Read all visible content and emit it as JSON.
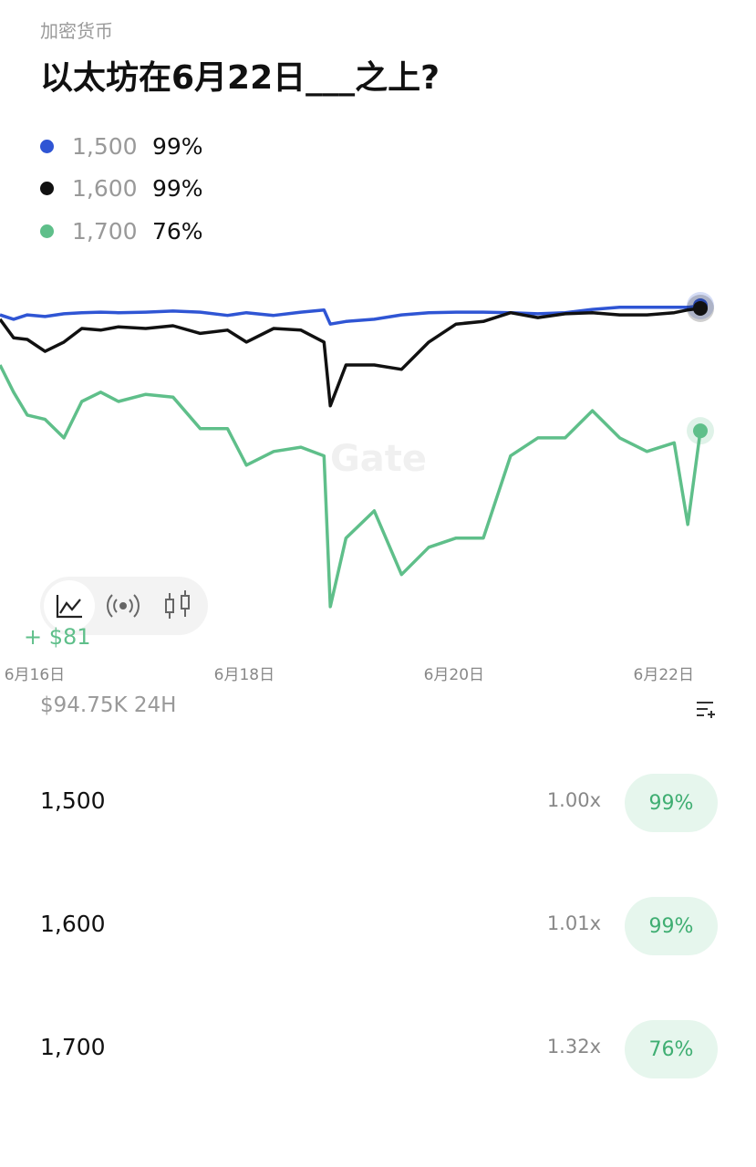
{
  "category": "加密货币",
  "title": "以太坊在6月22日___之上?",
  "chart_data": {
    "type": "line",
    "x": [
      15.67,
      15.8,
      15.93,
      16.1,
      16.28,
      16.45,
      16.63,
      16.8,
      17.06,
      17.32,
      17.58,
      17.84,
      18.02,
      18.28,
      18.54,
      18.76,
      18.82,
      18.97,
      19.24,
      19.5,
      19.76,
      20.02,
      20.28,
      20.54,
      20.8,
      21.06,
      21.32,
      21.58,
      21.84,
      22.1,
      22.23,
      22.35
    ],
    "xlim": [
      15.67,
      22.35
    ],
    "xticks": [
      {
        "value": 16,
        "label": "6月16日"
      },
      {
        "value": 18,
        "label": "6月18日"
      },
      {
        "value": 20,
        "label": "6月20日"
      },
      {
        "value": 22,
        "label": "6月22日"
      }
    ],
    "ylim": [
      42,
      100
    ],
    "series": [
      {
        "name": "1,500",
        "probability": "99%",
        "color": "#2f55d4",
        "values": [
          97.3,
          96.5,
          97.3,
          97.0,
          97.5,
          97.7,
          97.8,
          97.7,
          97.8,
          98.0,
          97.8,
          97.2,
          97.7,
          97.2,
          97.8,
          98.2,
          95.6,
          96.1,
          96.5,
          97.3,
          97.7,
          97.8,
          97.8,
          97.7,
          97.5,
          97.7,
          98.3,
          98.7,
          98.7,
          98.7,
          98.7,
          99
        ]
      },
      {
        "name": "1,600",
        "probability": "99%",
        "color": "#111111",
        "values": [
          96.5,
          93.1,
          92.8,
          90.6,
          92.3,
          94.8,
          94.5,
          95.1,
          94.8,
          95.3,
          93.9,
          94.5,
          92.3,
          94.8,
          94.5,
          92.3,
          80.6,
          88.1,
          88.1,
          87.3,
          92.3,
          95.6,
          96.1,
          97.7,
          96.8,
          97.5,
          97.7,
          97.3,
          97.3,
          97.7,
          98.2,
          98.5
        ]
      },
      {
        "name": "1,700",
        "probability": "76%",
        "color": "#5fbf8a",
        "values": [
          88.1,
          83.1,
          78.9,
          78.1,
          74.7,
          81.4,
          83.1,
          81.4,
          82.7,
          82.2,
          76.4,
          76.4,
          69.7,
          72.2,
          73.0,
          71.4,
          43.7,
          56.3,
          61.3,
          49.6,
          54.6,
          56.3,
          56.3,
          71.4,
          74.7,
          74.7,
          79.7,
          74.7,
          72.2,
          73.8,
          58.8,
          76
        ]
      }
    ],
    "watermark": "Gate",
    "change": "+ $81"
  },
  "volume": "$94.75K 24H",
  "outcomes": [
    {
      "name": "1,500",
      "payout": "1.00x",
      "price": "99%"
    },
    {
      "name": "1,600",
      "payout": "1.01x",
      "price": "99%"
    },
    {
      "name": "1,700",
      "payout": "1.32x",
      "price": "76%"
    }
  ]
}
